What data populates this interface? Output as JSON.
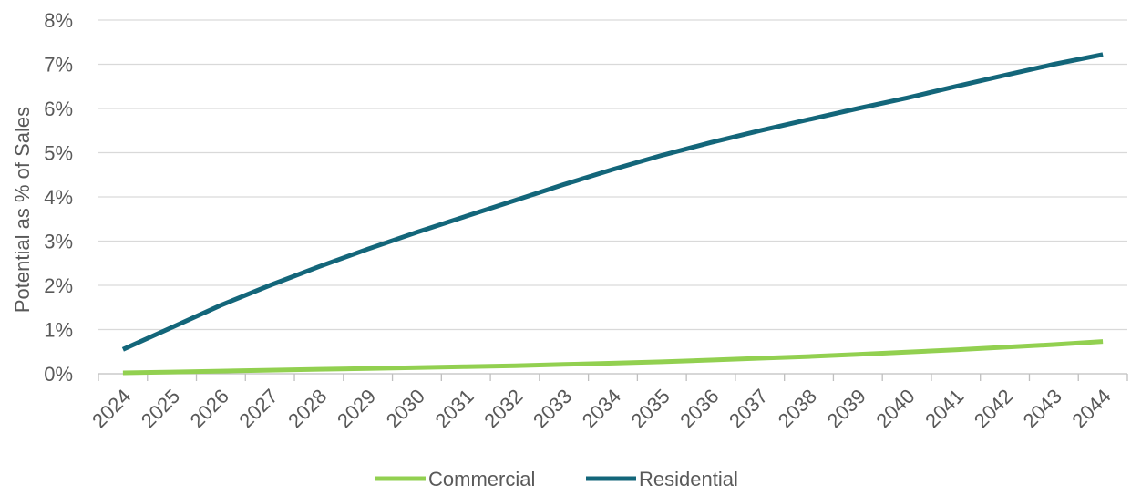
{
  "chart_data": {
    "type": "line",
    "title": "",
    "xlabel": "",
    "ylabel": "Potential as % of Sales",
    "categories": [
      "2024",
      "2025",
      "2026",
      "2027",
      "2028",
      "2029",
      "2030",
      "2031",
      "2032",
      "2033",
      "2034",
      "2035",
      "2036",
      "2037",
      "2038",
      "2039",
      "2040",
      "2041",
      "2042",
      "2043",
      "2044"
    ],
    "ylim": [
      0,
      8
    ],
    "yticks": [
      "0%",
      "1%",
      "2%",
      "3%",
      "4%",
      "5%",
      "6%",
      "7%",
      "8%"
    ],
    "grid": true,
    "legend_position": "bottom",
    "series": [
      {
        "name": "Commercial",
        "color": "#92d050",
        "values": [
          0.02,
          0.04,
          0.06,
          0.08,
          0.1,
          0.12,
          0.14,
          0.16,
          0.18,
          0.21,
          0.24,
          0.27,
          0.31,
          0.35,
          0.39,
          0.44,
          0.49,
          0.54,
          0.6,
          0.66,
          0.73
        ]
      },
      {
        "name": "Residential",
        "color": "#13667a",
        "values": [
          0.55,
          1.05,
          1.55,
          2.0,
          2.42,
          2.82,
          3.2,
          3.56,
          3.92,
          4.28,
          4.62,
          4.94,
          5.23,
          5.5,
          5.75,
          6.0,
          6.24,
          6.5,
          6.75,
          7.0,
          7.22
        ]
      }
    ]
  }
}
